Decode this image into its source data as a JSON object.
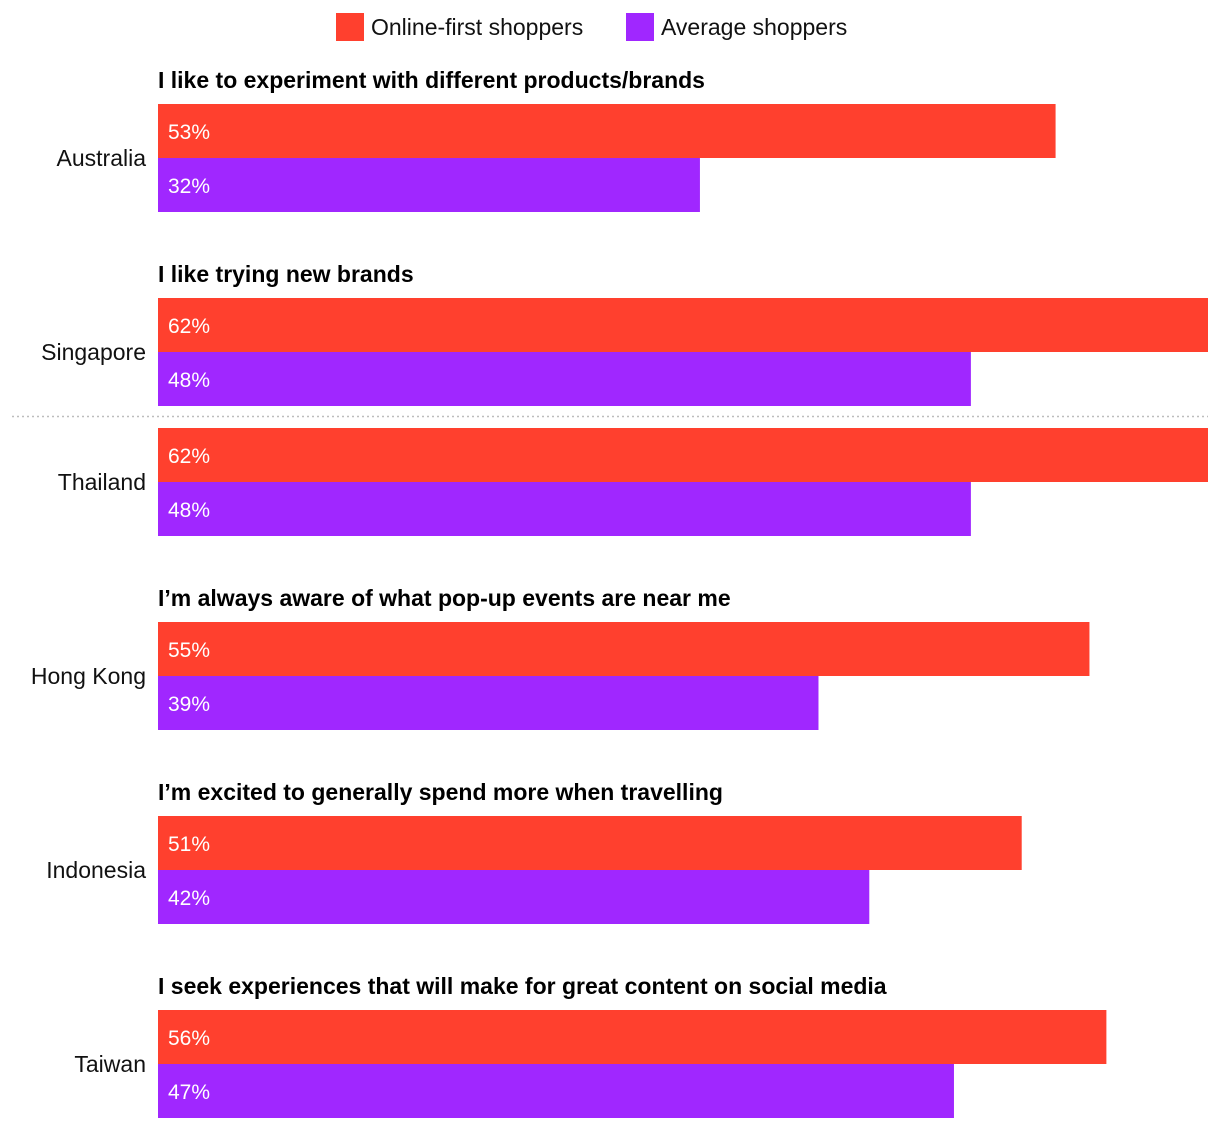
{
  "chart_data": {
    "type": "bar",
    "orientation": "horizontal",
    "legend_position": "top-center",
    "grid": false,
    "series": [
      {
        "name": "Online-first shoppers",
        "color": "#ff402e"
      },
      {
        "name": "Average shoppers",
        "color": "#a027ff"
      }
    ],
    "xlim": [
      0,
      62
    ],
    "groups": [
      {
        "title": "I like to experiment with different products/brands",
        "rows": [
          {
            "country": "Australia",
            "values": [
              53,
              32
            ],
            "labels": [
              "53%",
              "32%"
            ]
          }
        ]
      },
      {
        "title": "I like trying new brands",
        "rows": [
          {
            "country": "Singapore",
            "values": [
              62,
              48
            ],
            "labels": [
              "62%",
              "48%"
            ]
          },
          {
            "country": "Thailand",
            "values": [
              62,
              48
            ],
            "labels": [
              "62%",
              "48%"
            ]
          }
        ]
      },
      {
        "title": "I’m always aware of what pop-up events are near me",
        "rows": [
          {
            "country": "Hong Kong",
            "values": [
              55,
              39
            ],
            "labels": [
              "55%",
              "39%"
            ]
          }
        ]
      },
      {
        "title": "I’m excited to generally spend more when travelling",
        "rows": [
          {
            "country": "Indonesia",
            "values": [
              51,
              42
            ],
            "labels": [
              "51%",
              "42%"
            ]
          }
        ]
      },
      {
        "title": "I seek experiences that will make for great content on social media",
        "rows": [
          {
            "country": "Taiwan",
            "values": [
              56,
              47
            ],
            "labels": [
              "56%",
              "47%"
            ]
          }
        ]
      }
    ]
  }
}
